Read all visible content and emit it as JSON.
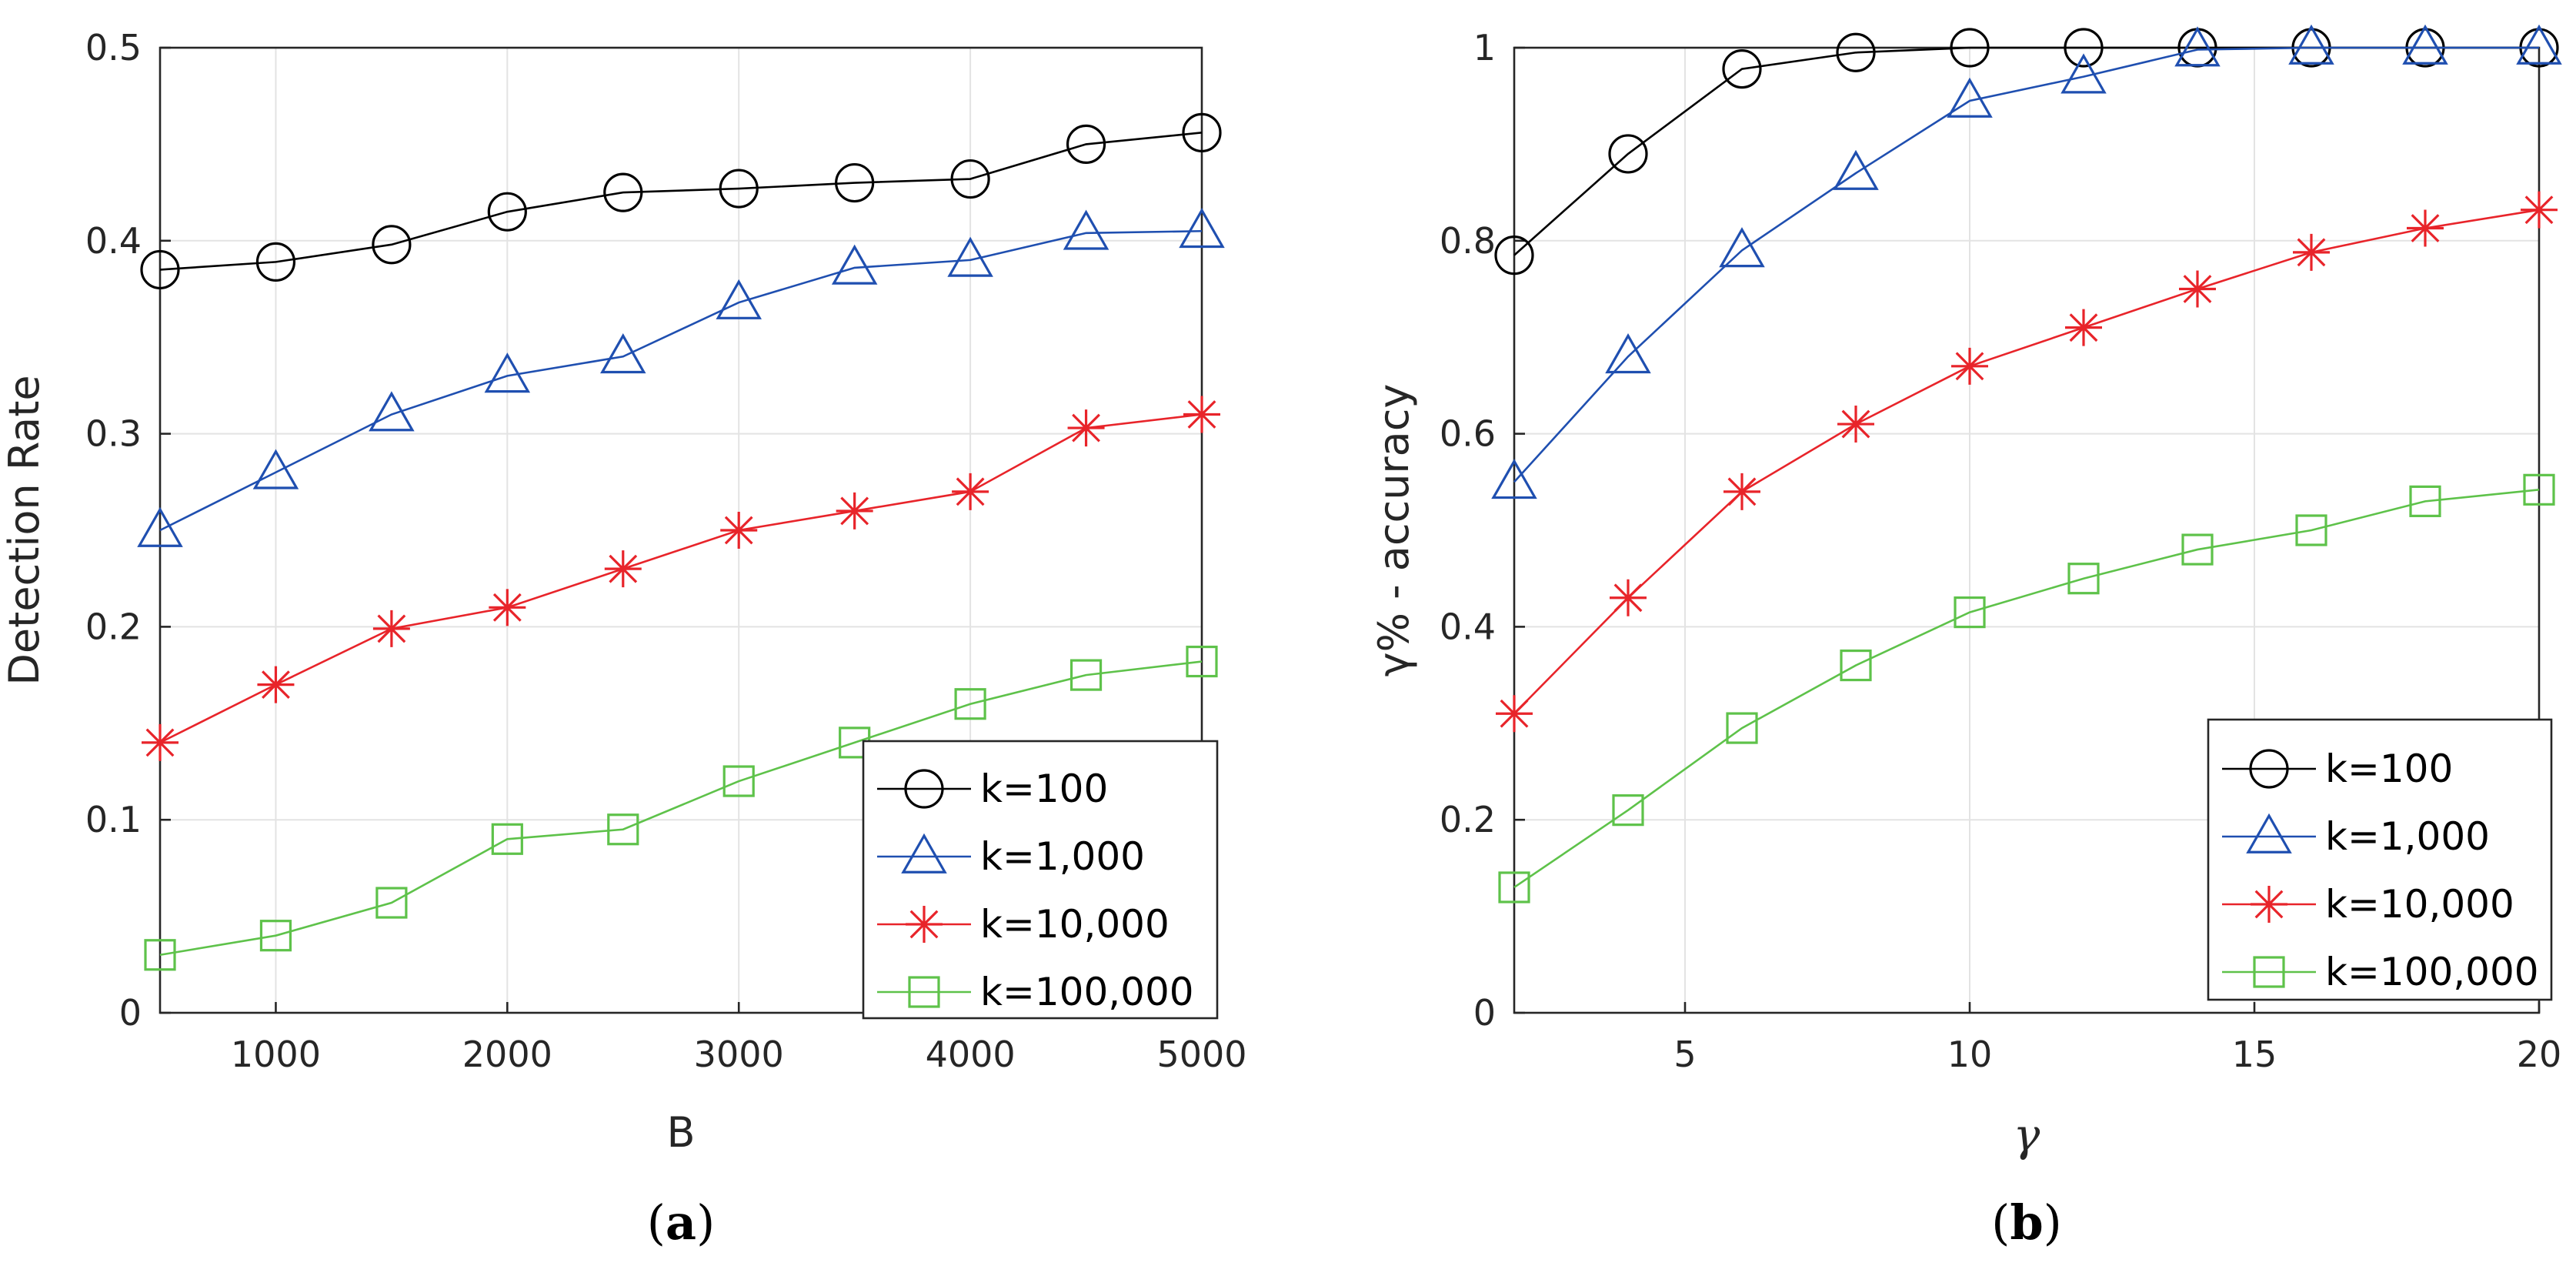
{
  "chart_data": [
    {
      "type": "line",
      "caption_open": "(",
      "caption_letter": "a",
      "caption_close": ")",
      "title": "",
      "xlabel": "B",
      "ylabel": "Detection Rate",
      "xlim": [
        500,
        5000
      ],
      "ylim": [
        0,
        0.5
      ],
      "xticks": [
        1000,
        2000,
        3000,
        4000,
        5000
      ],
      "xtick_labels": [
        "1000",
        "2000",
        "3000",
        "4000",
        "5000"
      ],
      "yticks": [
        0,
        0.1,
        0.2,
        0.3,
        0.4,
        0.5
      ],
      "ytick_labels": [
        "0",
        "0.1",
        "0.2",
        "0.3",
        "0.4",
        "0.5"
      ],
      "grid": true,
      "legend_position": "bottom-right",
      "x": [
        500,
        1000,
        1500,
        2000,
        2500,
        3000,
        3500,
        4000,
        4500,
        5000
      ],
      "series": [
        {
          "name": "k=100",
          "marker": "circle",
          "color": "#000000",
          "values": [
            0.385,
            0.389,
            0.398,
            0.415,
            0.425,
            0.427,
            0.43,
            0.432,
            0.45,
            0.456
          ]
        },
        {
          "name": "k=1,000",
          "marker": "triangle",
          "color": "#1f4fb0",
          "values": [
            0.25,
            0.28,
            0.31,
            0.33,
            0.34,
            0.368,
            0.386,
            0.39,
            0.404,
            0.405
          ]
        },
        {
          "name": "k=10,000",
          "marker": "star",
          "color": "#e8242a",
          "values": [
            0.14,
            0.17,
            0.199,
            0.21,
            0.23,
            0.25,
            0.26,
            0.27,
            0.303,
            0.31
          ]
        },
        {
          "name": "k=100,000",
          "marker": "square",
          "color": "#5ec24a",
          "values": [
            0.03,
            0.04,
            0.057,
            0.09,
            0.095,
            0.12,
            0.14,
            0.16,
            0.175,
            0.182
          ]
        }
      ]
    },
    {
      "type": "line",
      "caption_open": "(",
      "caption_letter": "b",
      "caption_close": ")",
      "title": "",
      "xlabel": "γ",
      "ylabel": "γ% - accuracy",
      "xlim": [
        2,
        20
      ],
      "ylim": [
        0,
        1
      ],
      "xticks": [
        5,
        10,
        15,
        20
      ],
      "xtick_labels": [
        "5",
        "10",
        "15",
        "20"
      ],
      "yticks": [
        0,
        0.2,
        0.4,
        0.6,
        0.8,
        1
      ],
      "ytick_labels": [
        "0",
        "0.2",
        "0.4",
        "0.6",
        "0.8",
        "1"
      ],
      "grid": true,
      "legend_position": "bottom-right",
      "x": [
        2,
        4,
        6,
        8,
        10,
        12,
        14,
        16,
        18,
        20
      ],
      "series": [
        {
          "name": "k=100",
          "marker": "circle",
          "color": "#000000",
          "values": [
            0.785,
            0.89,
            0.978,
            0.995,
            1.0,
            1.0,
            1.0,
            1.0,
            1.0,
            1.0
          ]
        },
        {
          "name": "k=1,000",
          "marker": "triangle",
          "color": "#1f4fb0",
          "values": [
            0.55,
            0.68,
            0.79,
            0.87,
            0.945,
            0.97,
            0.998,
            1.0,
            1.0,
            1.0
          ]
        },
        {
          "name": "k=10,000",
          "marker": "star",
          "color": "#e8242a",
          "values": [
            0.31,
            0.43,
            0.54,
            0.61,
            0.67,
            0.71,
            0.75,
            0.788,
            0.813,
            0.832
          ]
        },
        {
          "name": "k=100,000",
          "marker": "square",
          "color": "#5ec24a",
          "values": [
            0.13,
            0.21,
            0.295,
            0.36,
            0.415,
            0.45,
            0.48,
            0.5,
            0.53,
            0.542
          ]
        }
      ]
    }
  ]
}
